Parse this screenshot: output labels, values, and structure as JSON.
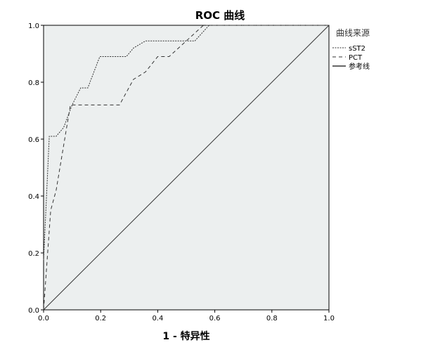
{
  "chart_data": {
    "type": "line",
    "title": "ROC 曲线",
    "xlabel": "1 - 特异性",
    "ylabel": "",
    "xlim": [
      0,
      1
    ],
    "ylim": [
      0,
      1
    ],
    "x_ticks": [
      "0.0",
      "0.2",
      "0.4",
      "0.6",
      "0.8",
      "1.0"
    ],
    "y_ticks": [
      "0.0",
      "0.2",
      "0.4",
      "0.6",
      "0.8",
      "1.0"
    ],
    "grid": false,
    "legend": {
      "title": "曲线来源",
      "placement": "right"
    },
    "plot_background": "#ECEFEF",
    "series": [
      {
        "name": "sST2",
        "style": "dotted",
        "color": "#333333",
        "x": [
          0,
          0.02,
          0.044,
          0.07,
          0.1,
          0.13,
          0.155,
          0.197,
          0.29,
          0.315,
          0.357,
          0.53,
          0.58,
          1.0
        ],
        "y": [
          0.175,
          0.61,
          0.61,
          0.64,
          0.72,
          0.78,
          0.78,
          0.89,
          0.89,
          0.92,
          0.945,
          0.945,
          1.0,
          1.0
        ]
      },
      {
        "name": "PCT",
        "style": "dashed",
        "color": "#333333",
        "x": [
          0,
          0.025,
          0.044,
          0.094,
          0.266,
          0.315,
          0.357,
          0.4,
          0.44,
          0.56,
          1.0
        ],
        "y": [
          0,
          0.35,
          0.42,
          0.72,
          0.72,
          0.81,
          0.836,
          0.89,
          0.89,
          1.0,
          1.0
        ]
      },
      {
        "name": "参考线",
        "style": "solid",
        "color": "#333333",
        "x": [
          0,
          1
        ],
        "y": [
          0,
          1
        ]
      }
    ]
  }
}
